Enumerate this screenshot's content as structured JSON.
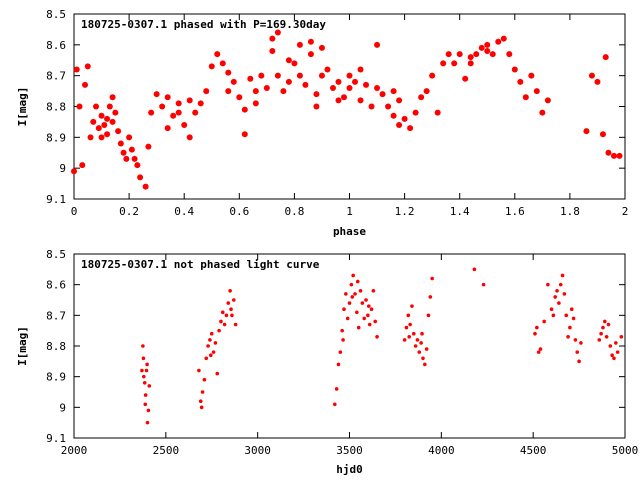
{
  "chart_data": [
    {
      "type": "scatter",
      "title": "180725-0307.1 phased with P=169.30day",
      "xlabel": "phase",
      "ylabel": "I[mag]",
      "xlim": [
        0,
        2
      ],
      "ylim": [
        8.5,
        9.1
      ],
      "y_inverted": true,
      "x_ticks": [
        0,
        0.2,
        0.4,
        0.6,
        0.8,
        1,
        1.2,
        1.4,
        1.6,
        1.8,
        2
      ],
      "x_tick_labels": [
        "0",
        "0.2",
        "0.4",
        "0.6",
        "0.8",
        "1",
        "1.2",
        "1.4",
        "1.6",
        "1.8",
        "2"
      ],
      "y_ticks": [
        8.5,
        8.6,
        8.7,
        8.8,
        8.9,
        9,
        9.1
      ],
      "y_tick_labels": [
        "8.5",
        "8.6",
        "8.7",
        "8.8",
        "8.9",
        "9",
        "9.1"
      ],
      "grid": false,
      "marker": "asterisk",
      "color": "#ff0000",
      "points": [
        [
          0.0,
          9.01
        ],
        [
          0.01,
          8.68
        ],
        [
          0.02,
          8.8
        ],
        [
          0.03,
          8.99
        ],
        [
          0.04,
          8.73
        ],
        [
          0.05,
          8.67
        ],
        [
          0.06,
          8.9
        ],
        [
          0.07,
          8.85
        ],
        [
          0.08,
          8.8
        ],
        [
          0.09,
          8.87
        ],
        [
          0.1,
          8.83
        ],
        [
          0.11,
          8.86
        ],
        [
          0.12,
          8.89
        ],
        [
          0.12,
          8.84
        ],
        [
          0.13,
          8.8
        ],
        [
          0.14,
          8.77
        ],
        [
          0.15,
          8.82
        ],
        [
          0.16,
          8.88
        ],
        [
          0.17,
          8.92
        ],
        [
          0.18,
          8.95
        ],
        [
          0.19,
          8.97
        ],
        [
          0.2,
          8.9
        ],
        [
          0.21,
          8.94
        ],
        [
          0.22,
          8.97
        ],
        [
          0.23,
          8.99
        ],
        [
          0.24,
          9.03
        ],
        [
          0.26,
          9.06
        ],
        [
          0.27,
          8.93
        ],
        [
          0.28,
          8.82
        ],
        [
          0.3,
          8.76
        ],
        [
          0.32,
          8.8
        ],
        [
          0.34,
          8.87
        ],
        [
          0.36,
          8.83
        ],
        [
          0.38,
          8.79
        ],
        [
          0.4,
          8.86
        ],
        [
          0.42,
          8.78
        ],
        [
          0.44,
          8.82
        ],
        [
          0.46,
          8.79
        ],
        [
          0.48,
          8.75
        ],
        [
          0.5,
          8.67
        ],
        [
          0.52,
          8.63
        ],
        [
          0.54,
          8.66
        ],
        [
          0.56,
          8.75
        ],
        [
          0.58,
          8.72
        ],
        [
          0.6,
          8.77
        ],
        [
          0.62,
          8.81
        ],
        [
          0.64,
          8.71
        ],
        [
          0.66,
          8.75
        ],
        [
          0.68,
          8.7
        ],
        [
          0.7,
          8.74
        ],
        [
          0.72,
          8.62
        ],
        [
          0.74,
          8.7
        ],
        [
          0.76,
          8.75
        ],
        [
          0.78,
          8.65
        ],
        [
          0.8,
          8.66
        ],
        [
          0.82,
          8.7
        ],
        [
          0.84,
          8.73
        ],
        [
          0.86,
          8.63
        ],
        [
          0.88,
          8.76
        ],
        [
          0.9,
          8.7
        ],
        [
          0.92,
          8.68
        ],
        [
          0.94,
          8.74
        ],
        [
          0.96,
          8.72
        ],
        [
          0.98,
          8.77
        ],
        [
          1.0,
          8.74
        ],
        [
          1.02,
          8.72
        ],
        [
          1.04,
          8.78
        ],
        [
          1.06,
          8.73
        ],
        [
          1.08,
          8.8
        ],
        [
          1.1,
          8.74
        ],
        [
          1.12,
          8.76
        ],
        [
          1.14,
          8.8
        ],
        [
          1.16,
          8.83
        ],
        [
          1.18,
          8.78
        ],
        [
          1.2,
          8.84
        ],
        [
          1.22,
          8.87
        ],
        [
          1.24,
          8.82
        ],
        [
          1.26,
          8.77
        ],
        [
          1.28,
          8.75
        ],
        [
          1.3,
          8.7
        ],
        [
          1.32,
          8.82
        ],
        [
          1.34,
          8.66
        ],
        [
          1.36,
          8.63
        ],
        [
          1.38,
          8.66
        ],
        [
          1.4,
          8.63
        ],
        [
          1.42,
          8.71
        ],
        [
          1.44,
          8.66
        ],
        [
          1.46,
          8.63
        ],
        [
          1.48,
          8.61
        ],
        [
          1.5,
          8.6
        ],
        [
          1.52,
          8.63
        ],
        [
          1.54,
          8.59
        ],
        [
          1.56,
          8.58
        ],
        [
          1.58,
          8.63
        ],
        [
          1.6,
          8.68
        ],
        [
          1.62,
          8.72
        ],
        [
          1.64,
          8.77
        ],
        [
          1.66,
          8.7
        ],
        [
          1.68,
          8.75
        ],
        [
          1.7,
          8.82
        ],
        [
          1.72,
          8.78
        ],
        [
          1.86,
          8.88
        ],
        [
          1.88,
          8.7
        ],
        [
          1.9,
          8.72
        ],
        [
          1.92,
          8.89
        ],
        [
          1.93,
          8.64
        ],
        [
          1.94,
          8.95
        ],
        [
          1.96,
          8.96
        ],
        [
          1.98,
          8.96
        ],
        [
          0.72,
          8.58
        ],
        [
          0.74,
          8.56
        ],
        [
          0.82,
          8.6
        ],
        [
          0.86,
          8.59
        ],
        [
          0.9,
          8.61
        ],
        [
          0.96,
          8.78
        ],
        [
          1.0,
          8.7
        ],
        [
          1.1,
          8.6
        ],
        [
          1.44,
          8.64
        ],
        [
          1.5,
          8.62
        ],
        [
          0.62,
          8.89
        ],
        [
          0.42,
          8.9
        ],
        [
          0.56,
          8.69
        ],
        [
          0.66,
          8.79
        ],
        [
          0.78,
          8.72
        ],
        [
          0.88,
          8.8
        ],
        [
          1.04,
          8.68
        ],
        [
          1.16,
          8.75
        ],
        [
          1.18,
          8.86
        ],
        [
          0.34,
          8.77
        ],
        [
          0.38,
          8.82
        ],
        [
          0.14,
          8.85
        ],
        [
          0.1,
          8.9
        ]
      ]
    },
    {
      "type": "scatter",
      "title": "180725-0307.1 not phased light curve",
      "xlabel": "hjd0",
      "ylabel": "I[mag]",
      "xlim": [
        2000,
        5000
      ],
      "ylim": [
        8.5,
        9.1
      ],
      "y_inverted": true,
      "x_ticks": [
        2000,
        2500,
        3000,
        3500,
        4000,
        4500,
        5000
      ],
      "x_tick_labels": [
        "2000",
        "2500",
        "3000",
        "3500",
        "4000",
        "4500",
        "5000"
      ],
      "y_ticks": [
        8.5,
        8.6,
        8.7,
        8.8,
        8.9,
        9,
        9.1
      ],
      "y_tick_labels": [
        "8.5",
        "8.6",
        "8.7",
        "8.8",
        "8.9",
        "9",
        "9.1"
      ],
      "grid": false,
      "marker": "dot",
      "color": "#ff0000",
      "points": [
        [
          2370,
          8.88
        ],
        [
          2375,
          8.8
        ],
        [
          2380,
          8.9
        ],
        [
          2385,
          8.92
        ],
        [
          2390,
          8.96
        ],
        [
          2395,
          8.88
        ],
        [
          2400,
          9.05
        ],
        [
          2405,
          9.01
        ],
        [
          2410,
          8.93
        ],
        [
          2378,
          8.84
        ],
        [
          2388,
          8.99
        ],
        [
          2398,
          8.86
        ],
        [
          2680,
          8.88
        ],
        [
          2690,
          8.98
        ],
        [
          2700,
          8.95
        ],
        [
          2710,
          8.91
        ],
        [
          2720,
          8.84
        ],
        [
          2730,
          8.8
        ],
        [
          2740,
          8.78
        ],
        [
          2750,
          8.76
        ],
        [
          2760,
          8.82
        ],
        [
          2770,
          8.79
        ],
        [
          2780,
          8.89
        ],
        [
          2790,
          8.75
        ],
        [
          2800,
          8.72
        ],
        [
          2810,
          8.69
        ],
        [
          2820,
          8.73
        ],
        [
          2830,
          8.7
        ],
        [
          2840,
          8.66
        ],
        [
          2850,
          8.62
        ],
        [
          2860,
          8.7
        ],
        [
          2870,
          8.65
        ],
        [
          2880,
          8.73
        ],
        [
          2695,
          9.0
        ],
        [
          2745,
          8.83
        ],
        [
          2855,
          8.68
        ],
        [
          3420,
          8.99
        ],
        [
          3430,
          8.94
        ],
        [
          3440,
          8.86
        ],
        [
          3450,
          8.82
        ],
        [
          3460,
          8.75
        ],
        [
          3470,
          8.68
        ],
        [
          3480,
          8.63
        ],
        [
          3490,
          8.71
        ],
        [
          3500,
          8.66
        ],
        [
          3510,
          8.6
        ],
        [
          3520,
          8.57
        ],
        [
          3530,
          8.63
        ],
        [
          3540,
          8.69
        ],
        [
          3550,
          8.74
        ],
        [
          3560,
          8.62
        ],
        [
          3570,
          8.66
        ],
        [
          3580,
          8.71
        ],
        [
          3590,
          8.65
        ],
        [
          3600,
          8.7
        ],
        [
          3610,
          8.73
        ],
        [
          3620,
          8.68
        ],
        [
          3630,
          8.62
        ],
        [
          3640,
          8.72
        ],
        [
          3650,
          8.77
        ],
        [
          3465,
          8.78
        ],
        [
          3515,
          8.64
        ],
        [
          3545,
          8.59
        ],
        [
          3605,
          8.67
        ],
        [
          3800,
          8.78
        ],
        [
          3810,
          8.74
        ],
        [
          3820,
          8.7
        ],
        [
          3830,
          8.73
        ],
        [
          3840,
          8.67
        ],
        [
          3850,
          8.76
        ],
        [
          3860,
          8.8
        ],
        [
          3870,
          8.78
        ],
        [
          3880,
          8.82
        ],
        [
          3890,
          8.79
        ],
        [
          3900,
          8.84
        ],
        [
          3910,
          8.86
        ],
        [
          3920,
          8.81
        ],
        [
          3930,
          8.7
        ],
        [
          3940,
          8.64
        ],
        [
          3950,
          8.58
        ],
        [
          3825,
          8.77
        ],
        [
          3895,
          8.76
        ],
        [
          4180,
          8.55
        ],
        [
          4230,
          8.6
        ],
        [
          4510,
          8.76
        ],
        [
          4520,
          8.74
        ],
        [
          4530,
          8.82
        ],
        [
          4540,
          8.81
        ],
        [
          4560,
          8.72
        ],
        [
          4580,
          8.6
        ],
        [
          4600,
          8.68
        ],
        [
          4610,
          8.7
        ],
        [
          4620,
          8.64
        ],
        [
          4630,
          8.62
        ],
        [
          4640,
          8.66
        ],
        [
          4650,
          8.6
        ],
        [
          4660,
          8.57
        ],
        [
          4670,
          8.63
        ],
        [
          4680,
          8.7
        ],
        [
          4690,
          8.77
        ],
        [
          4700,
          8.74
        ],
        [
          4710,
          8.68
        ],
        [
          4720,
          8.71
        ],
        [
          4730,
          8.78
        ],
        [
          4740,
          8.82
        ],
        [
          4750,
          8.85
        ],
        [
          4760,
          8.79
        ],
        [
          4860,
          8.78
        ],
        [
          4870,
          8.76
        ],
        [
          4880,
          8.74
        ],
        [
          4890,
          8.72
        ],
        [
          4900,
          8.77
        ],
        [
          4910,
          8.73
        ],
        [
          4920,
          8.8
        ],
        [
          4930,
          8.83
        ],
        [
          4940,
          8.84
        ],
        [
          4950,
          8.79
        ],
        [
          4960,
          8.82
        ],
        [
          4980,
          8.77
        ]
      ]
    }
  ]
}
